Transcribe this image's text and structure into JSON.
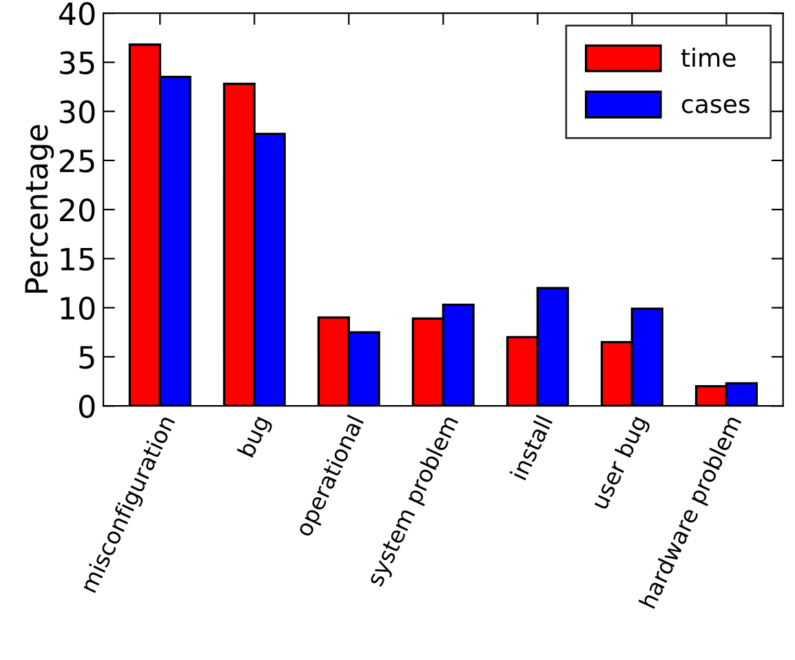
{
  "chart_data": {
    "type": "bar",
    "ylabel": "Percentage",
    "categories": [
      "misconfiguration",
      "bug",
      "operational",
      "system problem",
      "install",
      "user bug",
      "hardware problem"
    ],
    "series": [
      {
        "name": "time",
        "color": "#ff0000",
        "values": [
          36.8,
          32.8,
          9.0,
          8.9,
          7.0,
          6.5,
          2.0
        ]
      },
      {
        "name": "cases",
        "color": "#0000ff",
        "values": [
          33.5,
          27.7,
          7.5,
          10.3,
          12.0,
          9.9,
          2.3
        ]
      }
    ],
    "ylim": [
      0,
      40
    ],
    "yticks": [
      0,
      5,
      10,
      15,
      20,
      25,
      30,
      35,
      40
    ],
    "grid": false,
    "legend": "top right"
  }
}
